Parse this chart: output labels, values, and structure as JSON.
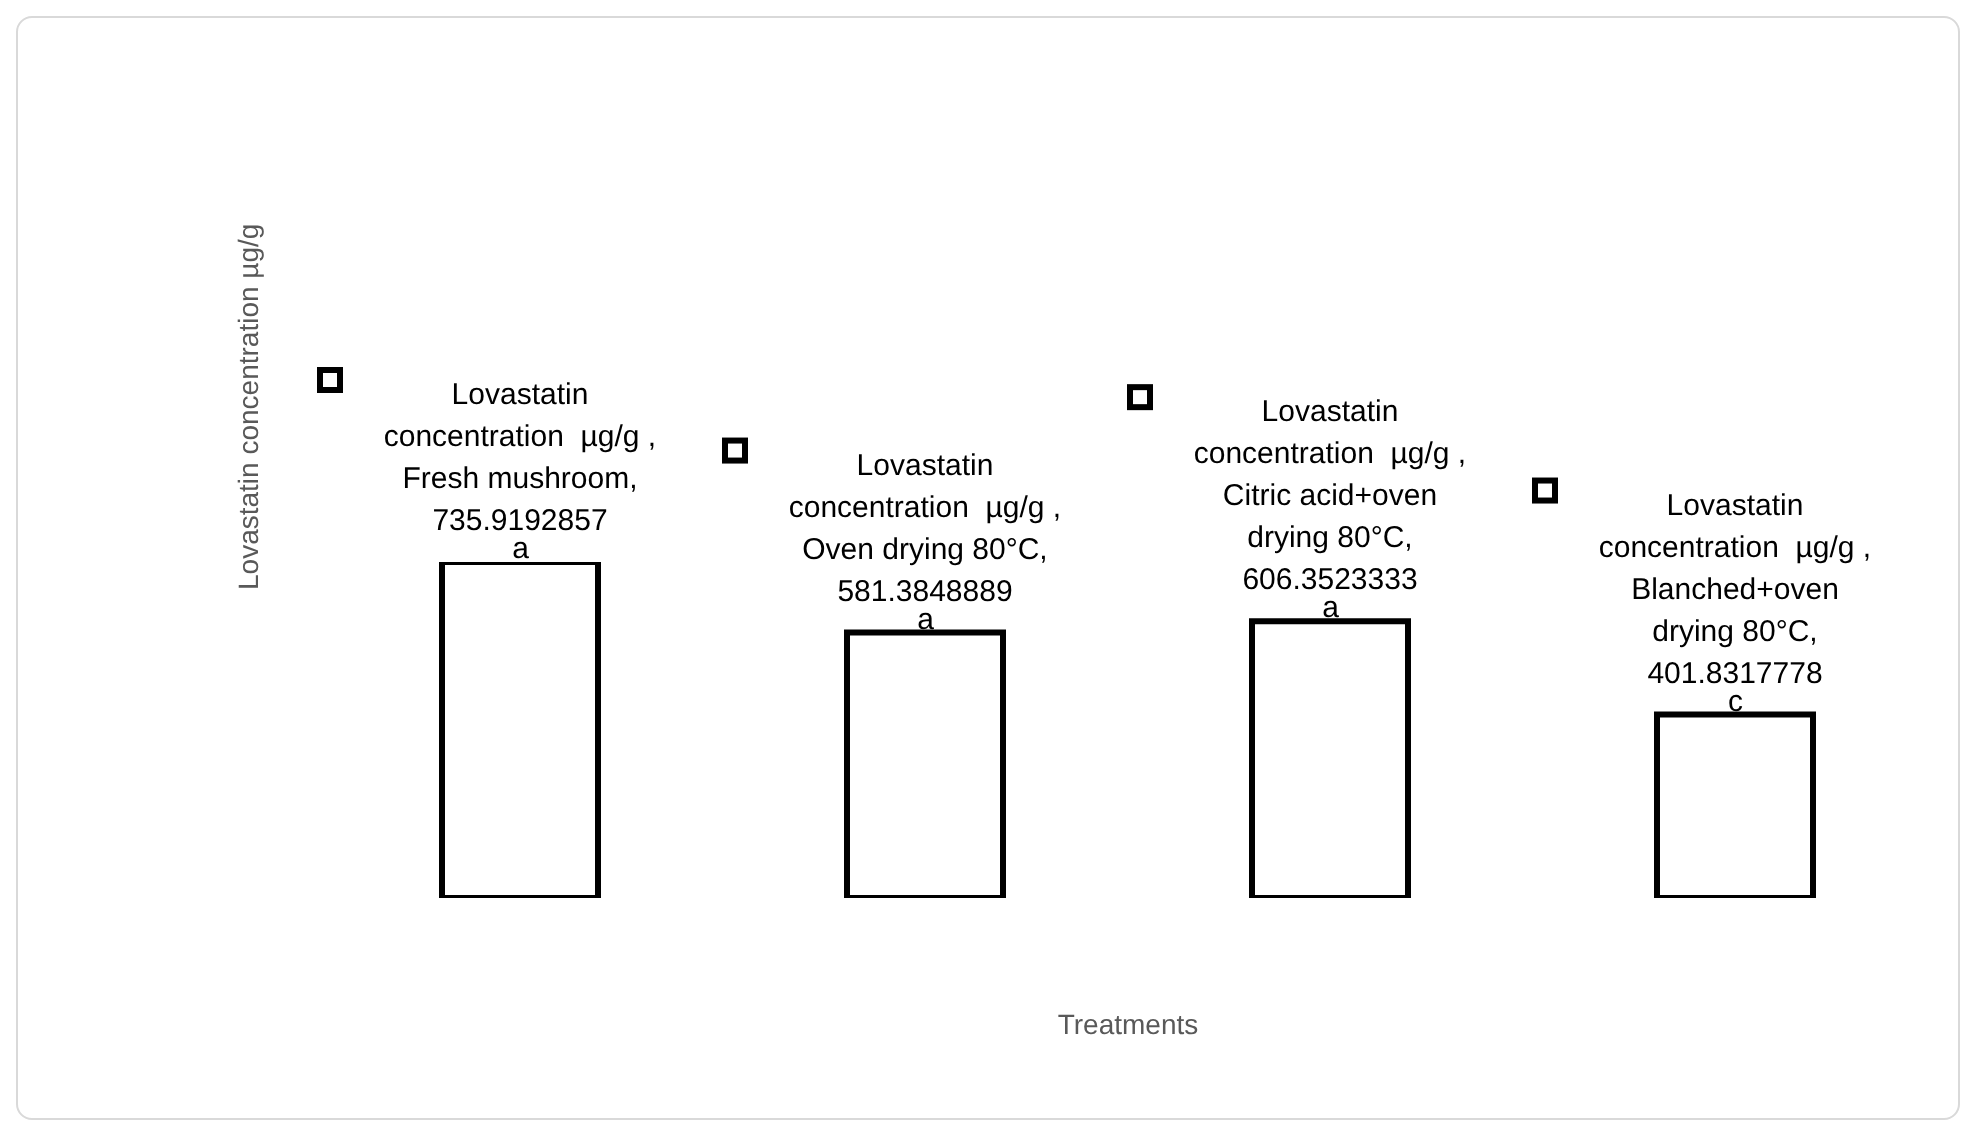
{
  "chart_data": {
    "type": "bar",
    "xlabel": "Treatments",
    "ylabel": "Lovastatin concentration  µg/g",
    "categories": [
      null,
      null,
      null,
      null
    ],
    "series": [
      {
        "color": "#ffffff",
        "values": [
          735.9192857,
          581.3848889,
          606.3523333,
          401.8317778
        ],
        "value_labels": [
          "Lovastatin concentration  µg/g , Fresh mushroom, 735.9192857",
          "Lovastatin concentration  µg/g , Oven drying 80°C, 581.3848889",
          "Lovastatin concentration  µg/g , Citric acid+oven drying 80°C, 606.3523333",
          "Lovastatin concentration  µg/g , Blanched+oven drying 80°C, 401.8317778"
        ]
      }
    ],
    "grid": false,
    "legend": false,
    "annotations": [
      {
        "text": "a",
        "y": 735.9192857
      },
      {
        "text": "a",
        "y": 581.3848889
      },
      {
        "text": "a",
        "y": 606.3523333
      },
      {
        "text": "c",
        "y": 401.8317778
      }
    ]
  }
}
